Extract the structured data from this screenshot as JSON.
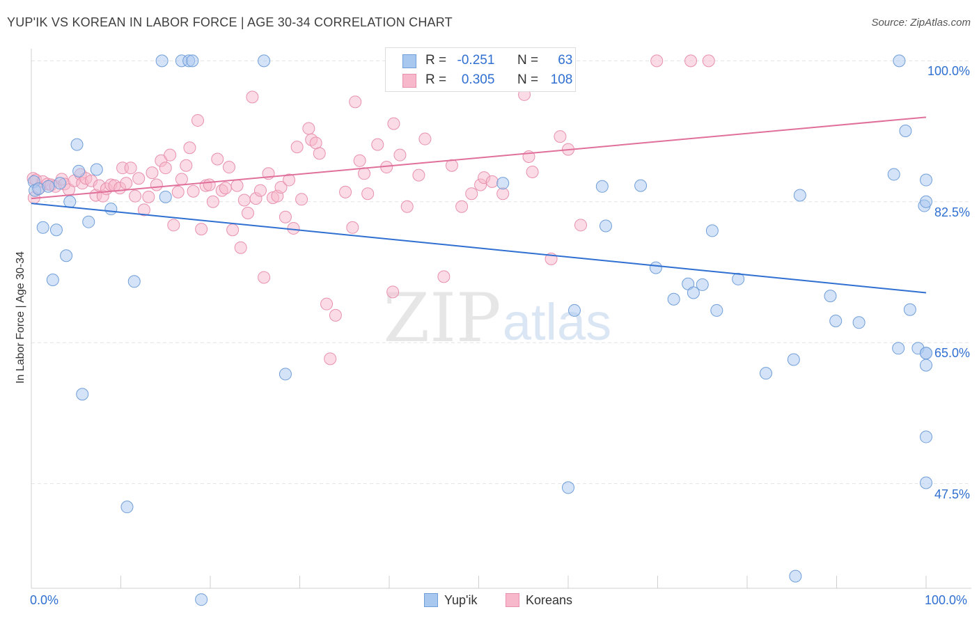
{
  "title": "YUP'IK VS KOREAN IN LABOR FORCE | AGE 30-34 CORRELATION CHART",
  "source": "Source: ZipAtlas.com",
  "watermark": {
    "zip": "ZIP",
    "atlas": "atlas"
  },
  "legend": {
    "r_label": "R =",
    "n_label": "N =",
    "rows": [
      {
        "series": "Yup'ik",
        "r": "-0.251",
        "n": "63"
      },
      {
        "series": "Koreans",
        "r": "0.305",
        "n": "108"
      }
    ]
  },
  "colors": {
    "yupik_fill": "#a9c8f0",
    "yupik_stroke": "#6f9ed9",
    "yupik_line": "#2f6fd1",
    "korean_fill": "#f7b8cc",
    "korean_stroke": "#e890ad",
    "korean_line": "#e0709a",
    "axis_label": "#2f6fd1",
    "grid": "#e3e3e3"
  },
  "chart_data": {
    "type": "scatter",
    "title": "YUP'IK VS KOREAN IN LABOR FORCE | AGE 30-34 CORRELATION CHART",
    "xlabel": "",
    "ylabel": "In Labor Force | Age 30-34",
    "xlim": [
      0,
      100
    ],
    "ylim": [
      34.5,
      101.5
    ],
    "x_tick_labels": [
      "0.0%",
      "100.0%"
    ],
    "y_ticks": [
      47.5,
      65.0,
      82.5,
      100.0
    ],
    "y_tick_labels": [
      "47.5%",
      "65.0%",
      "82.5%",
      "100.0%"
    ],
    "grid": "horizontal dashed",
    "legend_placement": "top-center",
    "series": [
      {
        "name": "Yup'ik",
        "trend": {
          "x": [
            0,
            100
          ],
          "y": [
            82.3,
            71.2
          ]
        },
        "points": [
          [
            0.3,
            85.0
          ],
          [
            0.4,
            83.9
          ],
          [
            0.8,
            84.1
          ],
          [
            1.3,
            79.3
          ],
          [
            1.9,
            84.4
          ],
          [
            2.4,
            72.8
          ],
          [
            2.8,
            79.0
          ],
          [
            3.2,
            84.8
          ],
          [
            3.9,
            75.8
          ],
          [
            4.3,
            82.5
          ],
          [
            5.1,
            89.6
          ],
          [
            5.3,
            86.3
          ],
          [
            5.7,
            58.6
          ],
          [
            6.4,
            80.0
          ],
          [
            7.3,
            86.5
          ],
          [
            8.9,
            81.6
          ],
          [
            10.7,
            44.6
          ],
          [
            11.5,
            72.6
          ],
          [
            14.6,
            100.0
          ],
          [
            15.0,
            83.1
          ],
          [
            16.8,
            100.0
          ],
          [
            17.6,
            100.0
          ],
          [
            18.0,
            100.0
          ],
          [
            19.0,
            33.1
          ],
          [
            26.0,
            100.0
          ],
          [
            28.4,
            61.1
          ],
          [
            52.0,
            100.0
          ],
          [
            52.7,
            84.8
          ],
          [
            58.3,
            100.0
          ],
          [
            60.0,
            47.0
          ],
          [
            60.7,
            69.0
          ],
          [
            63.8,
            84.4
          ],
          [
            64.2,
            79.5
          ],
          [
            68.1,
            84.5
          ],
          [
            69.8,
            74.3
          ],
          [
            71.8,
            70.4
          ],
          [
            73.4,
            72.3
          ],
          [
            74.0,
            71.2
          ],
          [
            75.0,
            72.2
          ],
          [
            76.1,
            78.9
          ],
          [
            76.6,
            69.0
          ],
          [
            79.0,
            72.9
          ],
          [
            82.1,
            61.2
          ],
          [
            85.2,
            62.9
          ],
          [
            85.9,
            83.3
          ],
          [
            96.9,
            64.3
          ],
          [
            97.0,
            100.0
          ],
          [
            97.7,
            91.3
          ],
          [
            85.4,
            36.0
          ],
          [
            89.3,
            70.8
          ],
          [
            89.9,
            67.7
          ],
          [
            92.5,
            67.5
          ],
          [
            96.4,
            85.9
          ],
          [
            98.2,
            69.1
          ],
          [
            99.1,
            64.3
          ],
          [
            99.8,
            82.0
          ],
          [
            100.0,
            82.5
          ],
          [
            100.0,
            85.2
          ],
          [
            100.0,
            63.7
          ],
          [
            100.0,
            63.7
          ],
          [
            100.0,
            62.2
          ],
          [
            100.0,
            53.3
          ],
          [
            100.0,
            47.6
          ]
        ]
      },
      {
        "name": "Koreans",
        "trend": {
          "x": [
            0,
            100
          ],
          "y": [
            82.9,
            93.0
          ]
        },
        "points": [
          [
            0.2,
            85.4
          ],
          [
            0.3,
            83.0
          ],
          [
            0.5,
            85.2
          ],
          [
            0.9,
            84.2
          ],
          [
            1.3,
            85.0
          ],
          [
            1.8,
            84.7
          ],
          [
            2.2,
            84.6
          ],
          [
            2.7,
            84.4
          ],
          [
            3.4,
            85.3
          ],
          [
            3.7,
            84.7
          ],
          [
            4.2,
            84.0
          ],
          [
            4.8,
            85.1
          ],
          [
            5.5,
            85.9
          ],
          [
            5.7,
            84.8
          ],
          [
            6.1,
            85.4
          ],
          [
            6.7,
            85.1
          ],
          [
            7.2,
            83.3
          ],
          [
            7.6,
            84.5
          ],
          [
            8.0,
            83.2
          ],
          [
            8.4,
            84.1
          ],
          [
            8.9,
            84.6
          ],
          [
            9.3,
            84.5
          ],
          [
            9.9,
            84.2
          ],
          [
            10.2,
            86.7
          ],
          [
            10.6,
            84.8
          ],
          [
            11.1,
            86.7
          ],
          [
            11.6,
            83.2
          ],
          [
            12.0,
            85.4
          ],
          [
            12.6,
            81.5
          ],
          [
            13.1,
            83.1
          ],
          [
            13.5,
            86.1
          ],
          [
            14.0,
            84.6
          ],
          [
            14.5,
            87.6
          ],
          [
            15.0,
            86.7
          ],
          [
            15.5,
            88.3
          ],
          [
            15.9,
            79.6
          ],
          [
            16.4,
            83.7
          ],
          [
            16.8,
            85.3
          ],
          [
            17.3,
            87.0
          ],
          [
            17.7,
            89.2
          ],
          [
            18.1,
            83.8
          ],
          [
            18.6,
            92.6
          ],
          [
            19.0,
            79.1
          ],
          [
            19.5,
            84.5
          ],
          [
            19.9,
            84.6
          ],
          [
            20.3,
            82.5
          ],
          [
            20.8,
            87.8
          ],
          [
            21.3,
            83.9
          ],
          [
            21.7,
            84.2
          ],
          [
            22.1,
            86.8
          ],
          [
            22.5,
            79.0
          ],
          [
            23.0,
            84.5
          ],
          [
            23.4,
            76.8
          ],
          [
            23.8,
            82.7
          ],
          [
            24.2,
            81.1
          ],
          [
            24.7,
            95.5
          ],
          [
            25.1,
            82.9
          ],
          [
            25.6,
            83.9
          ],
          [
            26.0,
            73.1
          ],
          [
            26.5,
            86.0
          ],
          [
            27.0,
            83.0
          ],
          [
            27.5,
            83.2
          ],
          [
            27.9,
            84.3
          ],
          [
            28.4,
            80.6
          ],
          [
            28.8,
            85.2
          ],
          [
            29.3,
            79.2
          ],
          [
            29.7,
            89.3
          ],
          [
            30.2,
            82.8
          ],
          [
            31.0,
            91.6
          ],
          [
            31.3,
            90.2
          ],
          [
            31.8,
            89.8
          ],
          [
            32.2,
            88.5
          ],
          [
            33.0,
            69.8
          ],
          [
            33.4,
            63.0
          ],
          [
            34.0,
            68.4
          ],
          [
            35.1,
            83.7
          ],
          [
            35.9,
            79.3
          ],
          [
            36.2,
            94.9
          ],
          [
            36.7,
            87.6
          ],
          [
            37.2,
            86.0
          ],
          [
            37.6,
            83.5
          ],
          [
            38.7,
            89.6
          ],
          [
            39.7,
            86.8
          ],
          [
            40.4,
            71.3
          ],
          [
            40.5,
            92.2
          ],
          [
            41.2,
            88.3
          ],
          [
            42.0,
            81.9
          ],
          [
            43.3,
            85.8
          ],
          [
            44.0,
            90.3
          ],
          [
            46.1,
            73.2
          ],
          [
            47.0,
            87.0
          ],
          [
            48.1,
            81.9
          ],
          [
            49.2,
            83.5
          ],
          [
            50.2,
            84.6
          ],
          [
            50.6,
            85.5
          ],
          [
            51.5,
            85.0
          ],
          [
            52.7,
            83.5
          ],
          [
            53.4,
            98.9
          ],
          [
            55.1,
            95.8
          ],
          [
            55.6,
            88.1
          ],
          [
            56.0,
            86.2
          ],
          [
            58.1,
            75.4
          ],
          [
            59.1,
            90.6
          ],
          [
            60.0,
            89.0
          ],
          [
            61.4,
            79.6
          ],
          [
            69.9,
            100.0
          ],
          [
            73.7,
            100.0
          ],
          [
            75.7,
            100.0
          ]
        ]
      }
    ]
  },
  "bottom_legend": [
    "Yup'ik",
    "Koreans"
  ]
}
